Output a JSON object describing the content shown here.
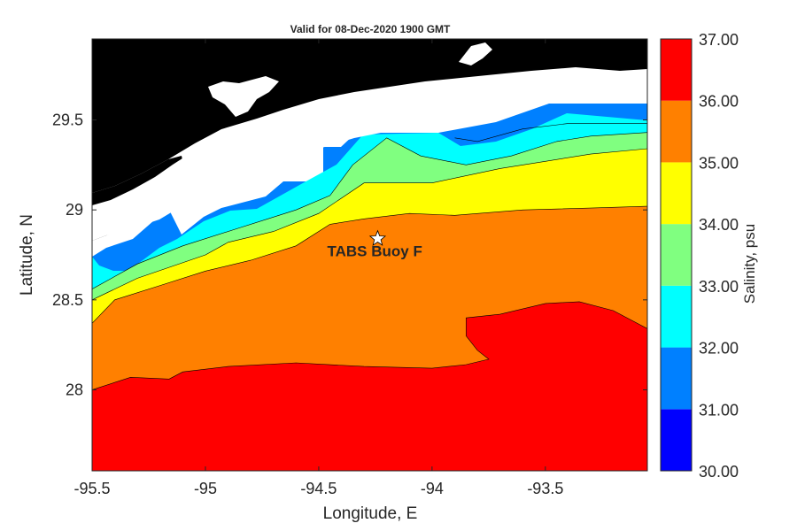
{
  "title": "Valid for 08-Dec-2020 1900 GMT",
  "xlabel": "Longitude, E",
  "ylabel": "Latitude, N",
  "colorbar_label": "Salinity, psu",
  "station": {
    "label": "TABS Buoy F",
    "lon": -94.24,
    "lat": 28.84,
    "marker": "star"
  },
  "colors": {
    "land": "#000000",
    "nodata": "#ffffff",
    "band_30_31": "#0000ff",
    "band_31_32": "#0080ff",
    "band_32_33": "#00ffff",
    "band_33_34": "#80ff80",
    "band_34_35": "#ffff00",
    "band_35_36": "#ff8000",
    "band_36_37": "#ff0000"
  },
  "chart_data": {
    "type": "heatmap",
    "xlim": [
      -95.5,
      -93.05
    ],
    "ylim": [
      27.55,
      29.95
    ],
    "xticks": [
      -95.5,
      -95,
      -94.5,
      -94,
      -93.5
    ],
    "xtick_labels": [
      "-95.5",
      "-95",
      "-94.5",
      "-94",
      "-93.5"
    ],
    "yticks": [
      28,
      28.5,
      29,
      29.5
    ],
    "ytick_labels": [
      "28",
      "28.5",
      "29",
      "29.5"
    ],
    "colorbar_levels": [
      30,
      31,
      32,
      33,
      34,
      35,
      36,
      37
    ],
    "colorbar_labels": [
      "30.00",
      "31.00",
      "32.00",
      "33.00",
      "34.00",
      "35.00",
      "36.00",
      "37.00"
    ],
    "contour_lines": [
      {
        "level": 36,
        "points": [
          [
            -95.5,
            28.0
          ],
          [
            -95.33,
            28.07
          ],
          [
            -95.16,
            28.06
          ],
          [
            -95.1,
            28.1
          ],
          [
            -94.9,
            28.13
          ],
          [
            -94.6,
            28.15
          ],
          [
            -94.3,
            28.13
          ],
          [
            -94.0,
            28.12
          ],
          [
            -93.85,
            28.14
          ],
          [
            -93.75,
            28.17
          ],
          [
            -93.8,
            28.22
          ],
          [
            -93.85,
            28.3
          ],
          [
            -93.85,
            28.4
          ],
          [
            -93.7,
            28.42
          ],
          [
            -93.5,
            28.48
          ],
          [
            -93.35,
            28.49
          ],
          [
            -93.2,
            28.44
          ],
          [
            -93.05,
            28.34
          ]
        ]
      },
      {
        "level": 35,
        "points": [
          [
            -95.5,
            28.37
          ],
          [
            -95.4,
            28.5
          ],
          [
            -95.2,
            28.58
          ],
          [
            -95.0,
            28.66
          ],
          [
            -94.8,
            28.72
          ],
          [
            -94.6,
            28.8
          ],
          [
            -94.45,
            28.92
          ],
          [
            -94.3,
            28.95
          ],
          [
            -94.1,
            28.98
          ],
          [
            -93.9,
            28.97
          ],
          [
            -93.6,
            29.0
          ],
          [
            -93.3,
            29.01
          ],
          [
            -93.05,
            29.02
          ]
        ]
      },
      {
        "level": 34,
        "points": [
          [
            -95.5,
            28.5
          ],
          [
            -95.3,
            28.62
          ],
          [
            -95.0,
            28.75
          ],
          [
            -94.9,
            28.82
          ],
          [
            -94.7,
            28.88
          ],
          [
            -94.5,
            28.98
          ],
          [
            -94.3,
            29.15
          ],
          [
            -94.0,
            29.15
          ],
          [
            -93.7,
            29.23
          ],
          [
            -93.5,
            29.27
          ],
          [
            -93.3,
            29.31
          ],
          [
            -93.05,
            29.34
          ]
        ]
      },
      {
        "level": 33,
        "points": [
          [
            -95.5,
            28.56
          ],
          [
            -95.3,
            28.7
          ],
          [
            -95.1,
            28.8
          ],
          [
            -94.85,
            28.9
          ],
          [
            -94.6,
            29.0
          ],
          [
            -94.45,
            29.08
          ],
          [
            -94.35,
            29.25
          ],
          [
            -94.2,
            29.4
          ],
          [
            -94.05,
            29.3
          ],
          [
            -93.85,
            29.25
          ],
          [
            -93.65,
            29.3
          ],
          [
            -93.45,
            29.38
          ],
          [
            -93.3,
            29.41
          ],
          [
            -93.05,
            29.43
          ]
        ]
      },
      {
        "level": 32,
        "points": [
          [
            -93.9,
            29.4
          ],
          [
            -93.8,
            29.38
          ],
          [
            -93.6,
            29.45
          ],
          [
            -93.4,
            29.48
          ],
          [
            -93.2,
            29.48
          ],
          [
            -93.05,
            29.48
          ]
        ]
      }
    ]
  }
}
